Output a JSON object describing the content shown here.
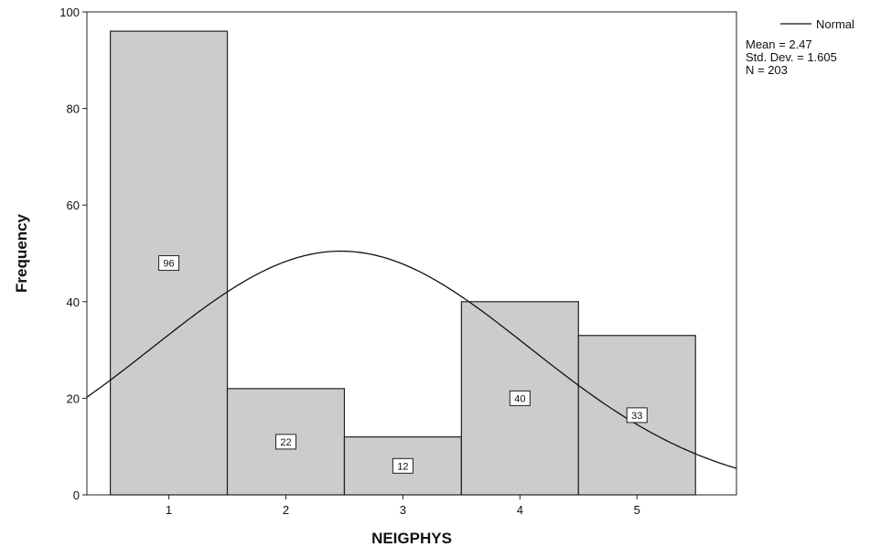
{
  "chart_data": {
    "type": "bar",
    "title": "",
    "xlabel": "NEIGPHYS",
    "ylabel": "Frequency",
    "categories": [
      "1",
      "2",
      "3",
      "4",
      "5"
    ],
    "values": [
      96,
      22,
      12,
      40,
      33
    ],
    "data_labels": [
      "96",
      "22",
      "12",
      "40",
      "33"
    ],
    "xlim": [
      0.3,
      5.85
    ],
    "ylim": [
      0,
      100
    ],
    "y_ticks": [
      0,
      20,
      40,
      60,
      80,
      100
    ],
    "y_tick_labels": [
      "0",
      "20",
      "40",
      "60",
      "80",
      "100"
    ],
    "grid": false,
    "legend_position": "top-right",
    "bar_color": "#cccccc",
    "normal_curve": {
      "label": "Normal",
      "mean": 2.47,
      "std_dev": 1.605,
      "n": 203
    },
    "stats_text": {
      "mean": "Mean = 2.47",
      "std_dev": "Std. Dev. = 1.605",
      "n": "N = 203"
    }
  }
}
